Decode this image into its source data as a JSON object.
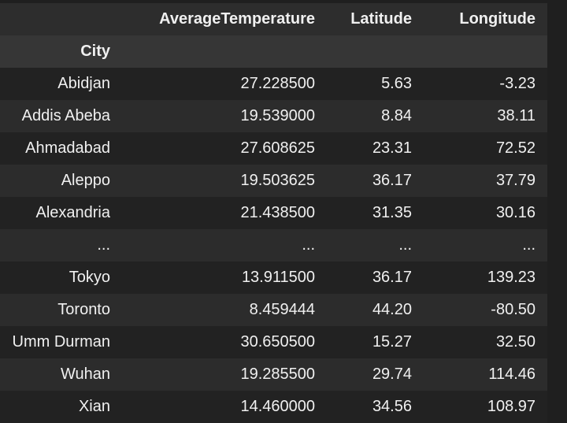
{
  "columns": [
    "",
    "AverageTemperature",
    "Latitude",
    "Longitude"
  ],
  "index_name": "City",
  "rows": [
    [
      "Abidjan",
      "27.228500",
      "5.63",
      "-3.23"
    ],
    [
      "Addis Abeba",
      "19.539000",
      "8.84",
      "38.11"
    ],
    [
      "Ahmadabad",
      "27.608625",
      "23.31",
      "72.52"
    ],
    [
      "Aleppo",
      "19.503625",
      "36.17",
      "37.79"
    ],
    [
      "Alexandria",
      "21.438500",
      "31.35",
      "30.16"
    ],
    [
      "...",
      "...",
      "...",
      "..."
    ],
    [
      "Tokyo",
      "13.911500",
      "36.17",
      "139.23"
    ],
    [
      "Toronto",
      "8.459444",
      "44.20",
      "-80.50"
    ],
    [
      "Umm Durman",
      "30.650500",
      "15.27",
      "32.50"
    ],
    [
      "Wuhan",
      "19.285500",
      "29.74",
      "114.46"
    ],
    [
      "Xian",
      "14.460000",
      "34.56",
      "108.97"
    ]
  ]
}
